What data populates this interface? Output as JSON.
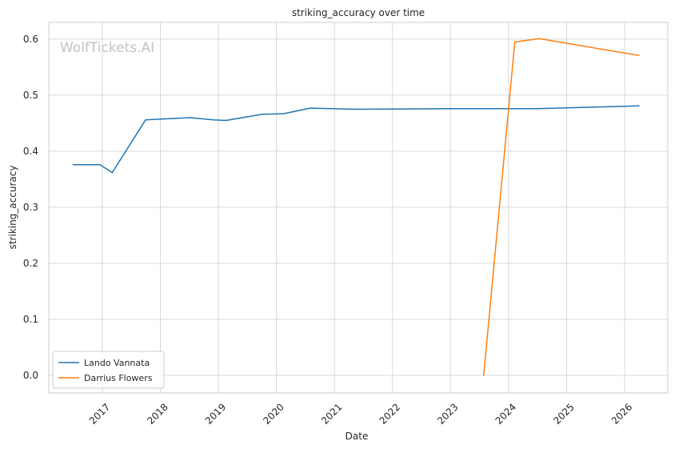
{
  "chart_data": {
    "type": "line",
    "title": "striking_accuracy over time",
    "xlabel": "Date",
    "ylabel": "striking_accuracy",
    "watermark": "WolfTickets.AI",
    "x_ticks": [
      "2017",
      "2018",
      "2019",
      "2020",
      "2021",
      "2022",
      "2023",
      "2024",
      "2025",
      "2026"
    ],
    "y_ticks": [
      "0.0",
      "0.1",
      "0.2",
      "0.3",
      "0.4",
      "0.5",
      "0.6"
    ],
    "ylim": [
      -0.035,
      0.63
    ],
    "grid": true,
    "legend_position": "bottom-left",
    "series": [
      {
        "name": "Lando Vannata",
        "color": "#1f77b4",
        "points": [
          {
            "x": "2016-07-01",
            "y": 0.376
          },
          {
            "x": "2016-12-17",
            "y": 0.376
          },
          {
            "x": "2017-03-04",
            "y": 0.362
          },
          {
            "x": "2017-09-30",
            "y": 0.456
          },
          {
            "x": "2018-07-06",
            "y": 0.46
          },
          {
            "x": "2018-12-01",
            "y": 0.456
          },
          {
            "x": "2019-02-17",
            "y": 0.455
          },
          {
            "x": "2019-10-05",
            "y": 0.466
          },
          {
            "x": "2020-02-15",
            "y": 0.467
          },
          {
            "x": "2020-08-01",
            "y": 0.477
          },
          {
            "x": "2021-05-22",
            "y": 0.475
          },
          {
            "x": "2023-01-01",
            "y": 0.476
          },
          {
            "x": "2024-07-01",
            "y": 0.476
          },
          {
            "x": "2026-04-01",
            "y": 0.481
          }
        ]
      },
      {
        "name": "Darrius Flowers",
        "color": "#ff7f0e",
        "points": [
          {
            "x": "2023-07-29",
            "y": 0.0
          },
          {
            "x": "2024-02-10",
            "y": 0.595
          },
          {
            "x": "2024-07-13",
            "y": 0.601
          },
          {
            "x": "2026-04-01",
            "y": 0.571
          }
        ]
      }
    ]
  }
}
